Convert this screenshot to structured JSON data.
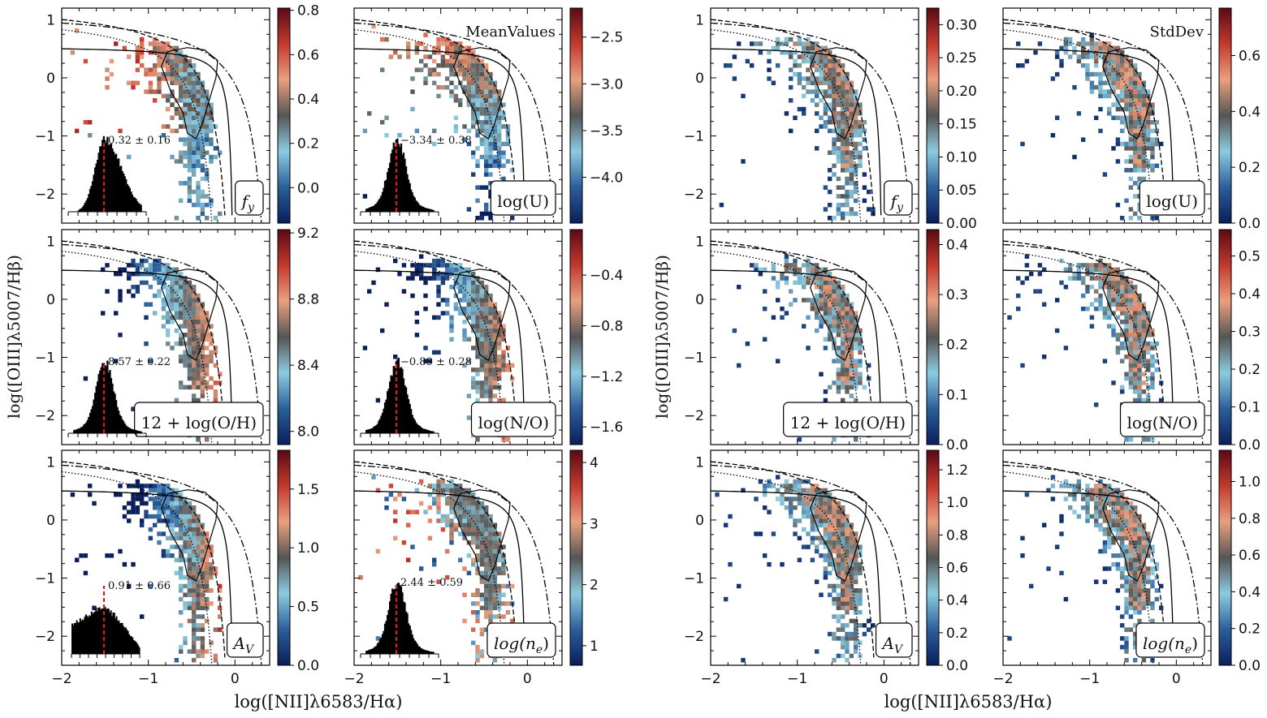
{
  "figure": {
    "y_axis_label": "log([OIII]λ5007/Hβ)",
    "x_axis_label": "log([NII]λ6583/Hα)",
    "mean_title": "MeanValues",
    "std_title": "StdDev"
  },
  "colormap": [
    "#0a1e5a",
    "#2c5f9a",
    "#8ccbe0",
    "#555555",
    "#e8a07f",
    "#c33a2e",
    "#5a0a15"
  ],
  "chart_data": {
    "type": "heatmap",
    "xlim": [
      -2.0,
      0.4
    ],
    "ylim": [
      -2.5,
      1.2
    ],
    "x_ticks": [
      "−2",
      "−1",
      "0"
    ],
    "x_tick_values": [
      -2,
      -1,
      0
    ],
    "y_ticks": [
      "1",
      "0",
      "−1",
      "−2"
    ],
    "y_tick_values": [
      1,
      0,
      -1,
      -2
    ],
    "demarcation_curves": [
      {
        "style": "dash-dot",
        "form": "y = 0.61/(x-0.47)+1.19"
      },
      {
        "style": "dashed",
        "form": "y = 0.61/(x-0.05)+1.3"
      },
      {
        "style": "dotted",
        "form": "y = 0.61/(x+0.1)+1.15"
      },
      {
        "style": "solid",
        "form": "y = 0.1/x+0.55"
      }
    ],
    "contour": [
      [
        -0.78,
        0.45
      ],
      [
        -0.55,
        0.52
      ],
      [
        -0.35,
        0.48
      ],
      [
        -0.2,
        0.3
      ],
      [
        -0.22,
        0.0
      ],
      [
        -0.3,
        -0.4
      ],
      [
        -0.38,
        -0.8
      ],
      [
        -0.45,
        -1.05
      ],
      [
        -0.55,
        -0.95
      ],
      [
        -0.6,
        -0.6
      ],
      [
        -0.75,
        -0.2
      ],
      [
        -0.85,
        0.2
      ]
    ],
    "panels": [
      {
        "stat": "mean",
        "label": "f",
        "sub": "y",
        "cbar_range": [
          -0.16,
          0.81
        ],
        "cbar_ticks": [
          0.0,
          0.2,
          0.4,
          0.6,
          0.8
        ],
        "cbar_tick_labels": [
          "0.0",
          "0.2",
          "0.4",
          "0.6",
          "0.8"
        ],
        "hist_label": "0.32 ± 0.16"
      },
      {
        "stat": "mean",
        "label": "log(U)",
        "sub": "",
        "cbar_range": [
          -4.49,
          -2.19
        ],
        "cbar_ticks": [
          -4.0,
          -3.5,
          -3.0,
          -2.5
        ],
        "cbar_tick_labels": [
          "−4.0",
          "−3.5",
          "−3.0",
          "−2.5"
        ],
        "hist_label": "−3.34 ± 0.38"
      },
      {
        "stat": "std",
        "label": "f",
        "sub": "y",
        "cbar_range": [
          0,
          0.325
        ],
        "cbar_ticks": [
          0,
          0.05,
          0.1,
          0.15,
          0.2,
          0.25,
          0.3
        ],
        "cbar_tick_labels": [
          "0.00",
          "0.05",
          "0.10",
          "0.15",
          "0.20",
          "0.25",
          "0.30"
        ]
      },
      {
        "stat": "std",
        "label": "log(U)",
        "sub": "",
        "cbar_range": [
          0,
          0.77
        ],
        "cbar_ticks": [
          0,
          0.2,
          0.4,
          0.6
        ],
        "cbar_tick_labels": [
          "0.0",
          "0.2",
          "0.4",
          "0.6"
        ]
      },
      {
        "stat": "mean",
        "label": "12 + log(O/H)",
        "sub": "",
        "cbar_range": [
          7.92,
          9.22
        ],
        "cbar_ticks": [
          8.0,
          8.4,
          8.8,
          9.2
        ],
        "cbar_tick_labels": [
          "8.0",
          "8.4",
          "8.8",
          "9.2"
        ],
        "hist_label": "8.57 ± 0.22"
      },
      {
        "stat": "mean",
        "label": "log(N/O)",
        "sub": "",
        "cbar_range": [
          -1.74,
          -0.04
        ],
        "cbar_ticks": [
          -1.6,
          -1.2,
          -0.8,
          -0.4
        ],
        "cbar_tick_labels": [
          "−1.6",
          "−1.2",
          "−0.8",
          "−0.4"
        ],
        "hist_label": "−0.89 ± 0.28"
      },
      {
        "stat": "std",
        "label": "12 + log(O/H)",
        "sub": "",
        "cbar_range": [
          0,
          0.43
        ],
        "cbar_ticks": [
          0,
          0.1,
          0.2,
          0.3,
          0.4
        ],
        "cbar_tick_labels": [
          "0.0",
          "0.1",
          "0.2",
          "0.3",
          "0.4"
        ]
      },
      {
        "stat": "std",
        "label": "log(N/O)",
        "sub": "",
        "cbar_range": [
          0,
          0.57
        ],
        "cbar_ticks": [
          0,
          0.1,
          0.2,
          0.3,
          0.4,
          0.5
        ],
        "cbar_tick_labels": [
          "0.0",
          "0.1",
          "0.2",
          "0.3",
          "0.4",
          "0.5"
        ]
      },
      {
        "stat": "mean",
        "label": "A",
        "sub": "V",
        "cbar_range": [
          0,
          1.83
        ],
        "cbar_ticks": [
          0,
          0.5,
          1.0,
          1.5
        ],
        "cbar_tick_labels": [
          "0.0",
          "0.5",
          "1.0",
          "1.5"
        ],
        "hist_label": "0.91 ± 0.66"
      },
      {
        "stat": "mean",
        "label": "log(n",
        "sub": "e",
        "suffix": ")",
        "cbar_range": [
          0.68,
          4.2
        ],
        "cbar_ticks": [
          1,
          2,
          3,
          4
        ],
        "cbar_tick_labels": [
          "1",
          "2",
          "3",
          "4"
        ],
        "hist_label": "2.44 ± 0.59"
      },
      {
        "stat": "std",
        "label": "A",
        "sub": "V",
        "cbar_range": [
          0,
          1.32
        ],
        "cbar_ticks": [
          0,
          0.2,
          0.4,
          0.6,
          0.8,
          1.0,
          1.2
        ],
        "cbar_tick_labels": [
          "0.0",
          "0.2",
          "0.4",
          "0.6",
          "0.8",
          "1.0",
          "1.2"
        ]
      },
      {
        "stat": "std",
        "label": "log(n",
        "sub": "e",
        "suffix": ")",
        "cbar_range": [
          0,
          1.17
        ],
        "cbar_ticks": [
          0,
          0.2,
          0.4,
          0.6,
          0.8,
          1.0
        ],
        "cbar_tick_labels": [
          "0.0",
          "0.2",
          "0.4",
          "0.6",
          "0.8",
          "1.0"
        ]
      }
    ]
  }
}
